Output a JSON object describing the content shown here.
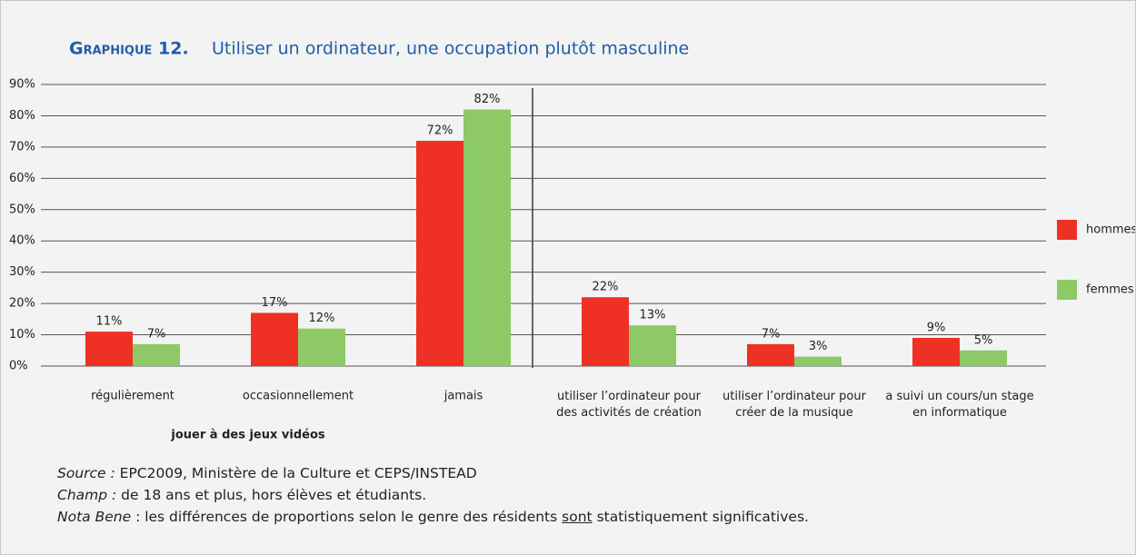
{
  "chart_data": {
    "type": "bar",
    "label": "Graphique 12.",
    "title": "Utiliser un ordinateur, une occupation plutôt masculine",
    "categories": [
      "régulièrement",
      "occasionnellement",
      "jamais",
      "utiliser l’ordinateur pour\ndes activités de création",
      "utiliser l’ordinateur pour\ncréer de la musique",
      "a suivi un cours/un stage\nen informatique"
    ],
    "group_label": "jouer à des jeux vidéos",
    "series": [
      {
        "name": "hommes",
        "color": "#ee3124",
        "values": [
          11,
          17,
          72,
          22,
          7,
          9
        ],
        "value_labels": [
          "11%",
          "17%",
          "72%",
          "22%",
          "7%",
          "9%"
        ]
      },
      {
        "name": "femmes",
        "color": "#8dc965",
        "values": [
          7,
          12,
          82,
          13,
          3,
          5
        ],
        "value_labels": [
          "7%",
          "12%",
          "82%",
          "13%",
          "3%",
          "5%"
        ]
      }
    ],
    "ylim": [
      0,
      90
    ],
    "yticks": [
      {
        "value": 0,
        "label": "0%"
      },
      {
        "value": 10,
        "label": "10%"
      },
      {
        "value": 20,
        "label": "20%"
      },
      {
        "value": 30,
        "label": "30%"
      },
      {
        "value": 40,
        "label": "40%"
      },
      {
        "value": 50,
        "label": "50%"
      },
      {
        "value": 60,
        "label": "60%"
      },
      {
        "value": 70,
        "label": "70%"
      },
      {
        "value": 80,
        "label": "80%"
      },
      {
        "value": 90,
        "label": "90%"
      }
    ],
    "grid": true,
    "legend": "right",
    "notes": [
      {
        "label": "Source :",
        "text": "EPC2009, Ministère de la Culture et CEPS/INSTEAD"
      },
      {
        "label": "Champ :",
        "text": "de 18 ans et plus, hors élèves et étudiants."
      },
      {
        "label": "Nota Bene",
        "text": ": les différences de proportions selon le genre des résidents",
        "underlined": "sont",
        "end": "statistiquement significatives."
      }
    ]
  }
}
